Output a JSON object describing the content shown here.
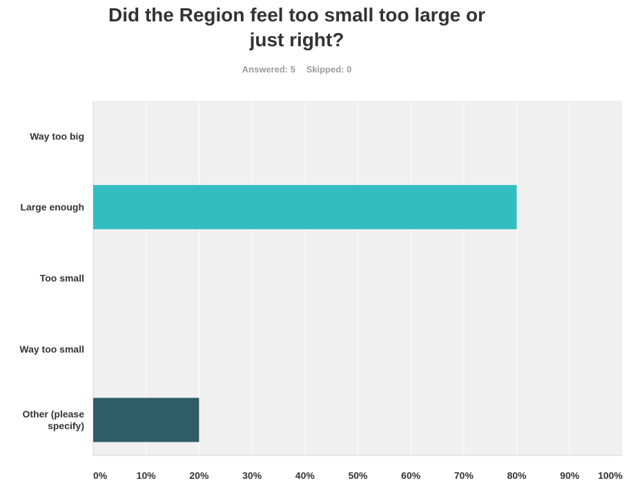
{
  "title_lines": [
    "Did the Region feel too small too large or",
    "just right?"
  ],
  "summary": {
    "answered": "Answered: 5",
    "skipped": "Skipped: 0"
  },
  "chart_data": {
    "type": "bar",
    "orientation": "horizontal",
    "categories": [
      "Way too big",
      "Large enough",
      "Too small",
      "Way too small",
      "Other (please specify)"
    ],
    "values": [
      0,
      80,
      0,
      0,
      20
    ],
    "unit": "%",
    "colors": [
      "#32bec1",
      "#32bec1",
      "#32bec1",
      "#32bec1",
      "#2f5d67"
    ],
    "xlim": [
      0,
      100
    ],
    "xticks": [
      "0%",
      "10%",
      "20%",
      "30%",
      "40%",
      "50%",
      "60%",
      "70%",
      "80%",
      "90%",
      "100%"
    ],
    "grid": true,
    "legend": "none",
    "background": "#f0f0f0"
  }
}
